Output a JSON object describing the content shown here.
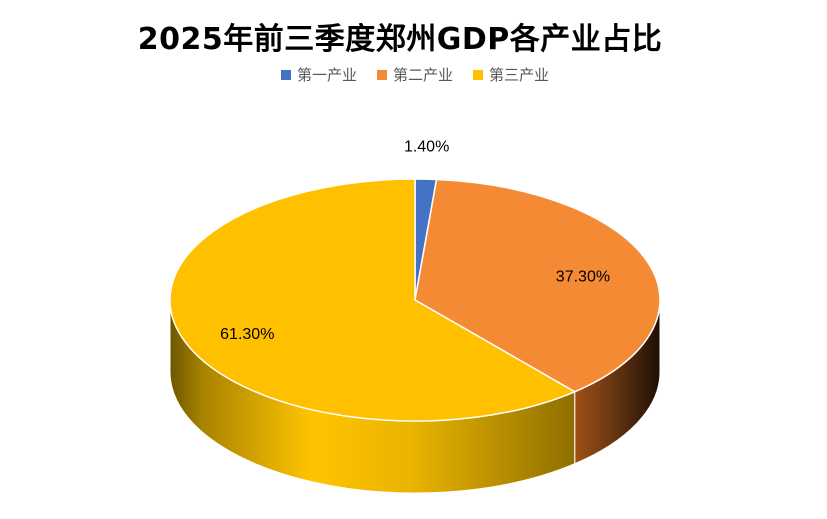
{
  "chart_data": {
    "type": "pie",
    "title": "2025年前三季度郑州GDP各产业占比",
    "categories": [
      "第一产业",
      "第二产业",
      "第三产业"
    ],
    "values": [
      1.4,
      37.3,
      61.3
    ],
    "labels": [
      "1.40%",
      "37.30%",
      "61.30%"
    ],
    "colors": [
      "#4472C4",
      "#F58A35",
      "#FFC000"
    ],
    "legend_position": "top",
    "style": "3d-pie"
  }
}
